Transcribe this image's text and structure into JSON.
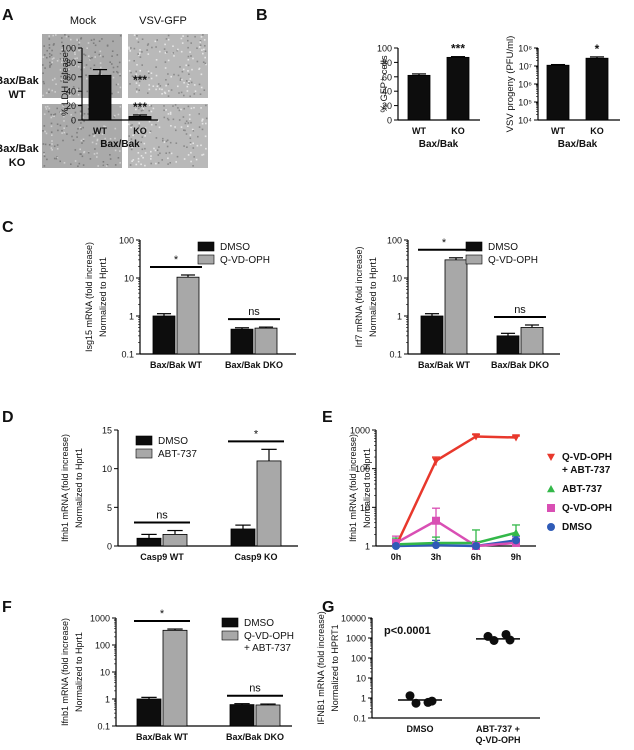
{
  "panelA": {
    "letter": "A",
    "col_labels": [
      "Mock",
      "VSV-GFP"
    ],
    "row_labels": [
      [
        "Bax/Bak",
        "WT"
      ],
      [
        "Bax/Bak",
        "KO"
      ]
    ]
  },
  "chart_data": [
    {
      "id": "B1",
      "letter": "B",
      "type": "bar",
      "scale": "linear",
      "ylabel": "% LDH release",
      "ylim": [
        0,
        100
      ],
      "yticks": [
        "0",
        "20",
        "40",
        "60",
        "80",
        "100"
      ],
      "categories": [
        "WT",
        "KO"
      ],
      "xlabel": "Bax/Bak",
      "series": [
        {
          "values": [
            62,
            5
          ],
          "errors": [
            8,
            2
          ]
        }
      ],
      "annotations": [
        {
          "text": "***",
          "category": 1
        }
      ]
    },
    {
      "id": "B2",
      "type": "bar",
      "scale": "linear",
      "ylabel": "% GFP⁺ cells",
      "ylim": [
        0,
        100
      ],
      "yticks": [
        "0",
        "20",
        "40",
        "60",
        "80",
        "100"
      ],
      "categories": [
        "WT",
        "KO"
      ],
      "xlabel": "Bax/Bak",
      "series": [
        {
          "values": [
            62,
            87
          ],
          "errors": [
            2,
            1
          ]
        }
      ],
      "annotations": [
        {
          "text": "***",
          "category": 1
        }
      ]
    },
    {
      "id": "B3",
      "type": "bar",
      "scale": "log",
      "ylabel": "VSV progeny (PFU/ml)",
      "ylim": [
        10000,
        100000000
      ],
      "yticks": [
        "10⁴",
        "10⁵",
        "10⁶",
        "10⁷",
        "10⁸"
      ],
      "categories": [
        "WT",
        "KO"
      ],
      "xlabel": "Bax/Bak",
      "series": [
        {
          "values": [
            11000000,
            27000000
          ],
          "errors": [
            1000000,
            5000000
          ]
        }
      ],
      "annotations": [
        {
          "text": "*",
          "category": 1
        }
      ]
    },
    {
      "id": "C1",
      "letter": "C",
      "type": "bar",
      "scale": "log",
      "ylabel_lines": [
        "Isg15 mRNA (fold increase)",
        "Normalized to Hprt1"
      ],
      "ylim": [
        0.1,
        100
      ],
      "yticks": [
        "0.1",
        "1",
        "10",
        "100"
      ],
      "categories": [
        "Bax/Bak WT",
        "Bax/Bak DKO"
      ],
      "series": [
        {
          "name": "DMSO",
          "values": [
            1.0,
            0.45
          ],
          "errors": [
            0.15,
            0.04
          ]
        },
        {
          "name": "Q-VD-OPH",
          "values": [
            10.5,
            0.48
          ],
          "errors": [
            1.5,
            0.03
          ]
        }
      ],
      "annotations": [
        {
          "text": "*",
          "category": 0
        },
        {
          "text": "ns",
          "category": 1
        }
      ]
    },
    {
      "id": "C2",
      "type": "bar",
      "scale": "log",
      "ylabel_lines": [
        "Irf7 mRNA (fold increase)",
        "Normalized to Hprt1"
      ],
      "ylim": [
        0.1,
        100
      ],
      "yticks": [
        "0.1",
        "1",
        "10",
        "100"
      ],
      "categories": [
        "Bax/Bak WT",
        "Bax/Bak DKO"
      ],
      "series": [
        {
          "name": "DMSO",
          "values": [
            1.0,
            0.3
          ],
          "errors": [
            0.15,
            0.05
          ]
        },
        {
          "name": "Q-VD-OPH",
          "values": [
            30,
            0.5
          ],
          "errors": [
            4,
            0.08
          ]
        }
      ],
      "annotations": [
        {
          "text": "*",
          "category": 0
        },
        {
          "text": "ns",
          "category": 1
        }
      ]
    },
    {
      "id": "D",
      "letter": "D",
      "type": "bar",
      "scale": "linear",
      "ylabel_lines": [
        "Ifnb1 mRNA (fold increase)",
        "Normalized to Hprt1"
      ],
      "ylim": [
        0,
        15
      ],
      "yticks": [
        "0",
        "5",
        "10",
        "15"
      ],
      "categories": [
        "Casp9 WT",
        "Casp9 KO"
      ],
      "series": [
        {
          "name": "DMSO",
          "values": [
            1.0,
            2.2
          ],
          "errors": [
            0.5,
            0.5
          ]
        },
        {
          "name": "ABT-737",
          "values": [
            1.5,
            11.0
          ],
          "errors": [
            0.5,
            1.5
          ]
        }
      ],
      "annotations": [
        {
          "text": "ns",
          "category": 0
        },
        {
          "text": "*",
          "category": 1
        }
      ]
    },
    {
      "id": "E",
      "letter": "E",
      "type": "line",
      "scale": "log",
      "ylabel_lines": [
        "Ifnb1 mRNA (fold increase)",
        "Normalized to Hprt1"
      ],
      "ylim": [
        1,
        1000
      ],
      "yticks": [
        "1",
        "10",
        "100",
        "1000"
      ],
      "x": [
        "0h",
        "3h",
        "6h",
        "9h"
      ],
      "series": [
        {
          "name_lines": [
            "Q-VD-OPH",
            "+ ABT-737"
          ],
          "color": "#e8382c",
          "marker": "triangle-down",
          "values": [
            1,
            160,
            680,
            640
          ],
          "errors": [
            0.3,
            40,
            80,
            60
          ]
        },
        {
          "name_lines": [
            "ABT-737"
          ],
          "color": "#33b849",
          "marker": "triangle-up",
          "values": [
            1.1,
            1.2,
            1.2,
            2.2
          ],
          "errors": [
            0.5,
            0.5,
            1.4,
            1.3
          ]
        },
        {
          "name_lines": [
            "Q-VD-OPH"
          ],
          "color": "#d94fb4",
          "marker": "square",
          "values": [
            1.2,
            4.5,
            1.0,
            1.2
          ],
          "errors": [
            0.6,
            5,
            0.3,
            0.4
          ]
        },
        {
          "name_lines": [
            "DMSO"
          ],
          "color": "#2f5bb7",
          "marker": "circle",
          "values": [
            1,
            1.05,
            1,
            1.4
          ],
          "errors": [
            0.3,
            0.35,
            0.3,
            0.4
          ]
        }
      ]
    },
    {
      "id": "F",
      "letter": "F",
      "type": "bar",
      "scale": "log",
      "ylabel_lines": [
        "Ifnb1 mRNA (fold increase)",
        "Normalized to Hprt1"
      ],
      "ylim": [
        0.1,
        1000
      ],
      "yticks": [
        "0.1",
        "1",
        "10",
        "100",
        "1000"
      ],
      "categories": [
        "Bax/Bak WT",
        "Bax/Bak DKO"
      ],
      "series": [
        {
          "name_lines": [
            "DMSO"
          ],
          "values": [
            1.0,
            0.62
          ],
          "errors": [
            0.15,
            0.05
          ]
        },
        {
          "name_lines": [
            "Q-VD-OPH",
            "+ ABT-737"
          ],
          "values": [
            350,
            0.6
          ],
          "errors": [
            40,
            0.05
          ]
        }
      ],
      "annotations": [
        {
          "text": "*",
          "category": 0
        },
        {
          "text": "ns",
          "category": 1
        }
      ]
    },
    {
      "id": "G",
      "letter": "G",
      "type": "scatter",
      "scale": "log",
      "ylabel_lines": [
        "IFNB1 mRNA (fold increase)",
        "Normalized to HPRT1"
      ],
      "ylim": [
        0.1,
        10000
      ],
      "yticks": [
        "0.1",
        "1",
        "10",
        "100",
        "1000",
        "10000"
      ],
      "categories": [
        "DMSO",
        "ABT-737 +|Q-VD-OPH"
      ],
      "groups": [
        {
          "points": [
            1.3,
            0.6,
            0.55,
            0.7
          ],
          "median": 0.8
        },
        {
          "points": [
            1200,
            1500,
            750,
            800
          ],
          "median": 900
        }
      ],
      "pvalue": "p<0.0001"
    }
  ]
}
